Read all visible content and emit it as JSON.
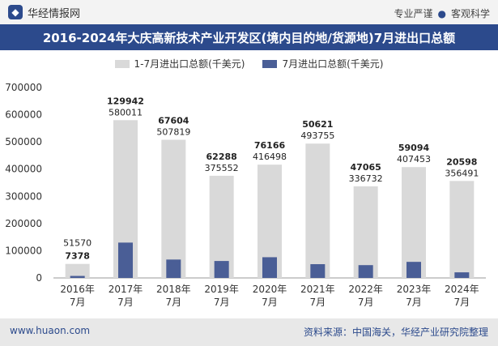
{
  "header": {
    "brand": "华经情报网",
    "tagline_left": "专业严谨",
    "tagline_right": "客观科学"
  },
  "title": "2016-2024年大庆高新技术产业开发区(境内目的地/货源地)7月进出口总额",
  "footer": {
    "site": "www.huaon.com",
    "source": "资料来源：中国海关，华经产业研究院整理"
  },
  "colors": {
    "title_bg": "#2c4a8c",
    "series_total": "#d9d9d9",
    "series_july": "#4a5e96"
  },
  "chart_data": {
    "type": "bar",
    "categories": [
      "2016年\n7月",
      "2017年\n7月",
      "2018年\n7月",
      "2019年\n7月",
      "2020年\n7月",
      "2021年\n7月",
      "2022年\n7月",
      "2023年\n7月",
      "2024年\n7月"
    ],
    "series": [
      {
        "name": "1-7月进出口总额(千美元)",
        "values": [
          51570,
          580011,
          507819,
          375552,
          416498,
          493755,
          336732,
          407453,
          356491
        ]
      },
      {
        "name": "7月进出口总额(千美元)",
        "values": [
          7378,
          129942,
          67604,
          62288,
          76166,
          50621,
          47065,
          59094,
          20598
        ]
      }
    ],
    "yticks": [
      0,
      100000,
      200000,
      300000,
      400000,
      500000,
      600000,
      700000
    ],
    "ylim": [
      0,
      700000
    ],
    "legend_position": "top-center",
    "grid": false
  }
}
